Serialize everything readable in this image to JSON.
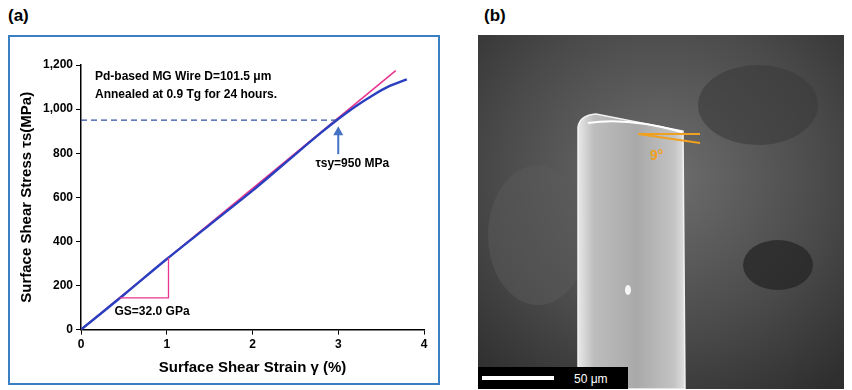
{
  "panel_labels": [
    "(a)",
    "(b)"
  ],
  "chart_data": {
    "type": "line",
    "x_label": "Surface Shear Strain γ (%)",
    "y_label": "Surface Shear Stress τs(MPa)",
    "annotations": [
      "Pd-based MG Wire D=101.5 μm",
      "Annealed at 0.9 Tg for 24 hours."
    ],
    "series": [
      {
        "color": "#e8368f",
        "x": [
          0,
          3.67
        ],
        "values": [
          0,
          1174
        ]
      },
      {
        "color": "#2a3fc0",
        "x": [
          0,
          0.5,
          1.0,
          1.5,
          2.0,
          2.5,
          2.8,
          3.0,
          3.2,
          3.4,
          3.6,
          3.8
        ],
        "values": [
          0,
          158,
          320,
          475,
          630,
          795,
          893,
          955,
          1012,
          1062,
          1105,
          1135
        ]
      }
    ],
    "yield": {
      "x": 3.0,
      "y": 950,
      "label": "τsy=950 MPa"
    },
    "modulus": {
      "label": "GS=32.0 GPa",
      "triangle_x": [
        0.45,
        1.02
      ],
      "triangle_y": [
        144,
        326
      ]
    },
    "xlim": [
      0,
      4
    ],
    "xticks": [
      0,
      1,
      2,
      3,
      4
    ],
    "ylim": [
      0,
      1200
    ],
    "yticks": [
      0,
      200,
      400,
      600,
      800,
      1000,
      1200
    ],
    "grid": false
  },
  "micrograph": {
    "angle_label": "9°",
    "scale_bar_label": "50 μm"
  }
}
